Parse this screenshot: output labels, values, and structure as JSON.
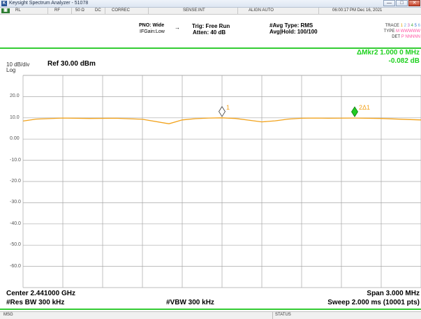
{
  "window": {
    "title": "Keysight Spectrum Analyzer - 51078",
    "minimize": "—",
    "maximize": "□",
    "close": "✕"
  },
  "menubar": {
    "rl": "RL",
    "rf": "RF",
    "impedance": "50 Ω",
    "coupling": "DC",
    "correc": "CORREC",
    "sense": "SENSE:INT",
    "align": "ALIGN AUTO",
    "datetime": "06:00:17 PM Dec 16, 2021"
  },
  "settings": {
    "pno": "PNO: Wide",
    "ifgain": "IFGain:Low",
    "trig": "Trig: Free Run",
    "atten": "Atten: 40 dB",
    "avg_type": "#Avg Type: RMS",
    "avg_hold": "Avg|Hold: 100/100"
  },
  "trace_table": {
    "trace_label": "TRACE",
    "trace_nums": [
      "1",
      "2",
      "3",
      "4",
      "5",
      "6"
    ],
    "type_label": "TYPE",
    "type_value": "M WWWWW",
    "det_label": "DET",
    "det_value": "P NNNNN"
  },
  "display": {
    "scale": "10 dB/div",
    "scale_type": "Log",
    "ref_level": "Ref 30.00 dBm",
    "marker_header": "ΔMkr2 1.000 0 MHz",
    "marker_value": "-0.082 dB"
  },
  "footer": {
    "center": "Center 2.441000 GHz",
    "res_bw": "#Res BW 300 kHz",
    "vbw": "#VBW 300 kHz",
    "span": "Span 3.000 MHz",
    "sweep": "Sweep  2.000 ms (10001 pts)"
  },
  "status": {
    "msg": "MSG",
    "status": "STATUS"
  },
  "colors": {
    "trace": "#f2a21a",
    "marker_active": "#22cc22",
    "marker_text": "#f2a21a",
    "grid": "#a8a8a8",
    "accent_green": "#33cc33"
  },
  "chart_data": {
    "type": "line",
    "x_unit": "GHz",
    "y_unit": "dBm",
    "center_ghz": 2.441,
    "span_mhz": 3.0,
    "xlim": [
      2.4395,
      2.4425
    ],
    "ylim": [
      -70,
      30
    ],
    "y_ticks": [
      "20.0",
      "10.0",
      "0.00",
      "-10.0",
      "-20.0",
      "-30.0",
      "-40.0",
      "-50.0",
      "-60.0"
    ],
    "y_tick_values": [
      20,
      10,
      0,
      -10,
      -20,
      -30,
      -40,
      -50,
      -60
    ],
    "series": [
      {
        "x": [
          2.4395,
          2.4396,
          2.4398,
          2.44,
          2.4402,
          2.4404,
          2.4406,
          2.4407,
          2.4408,
          2.4409,
          2.441,
          2.4411,
          2.4412,
          2.4413,
          2.4414,
          2.4415,
          2.4416,
          2.4417,
          2.4418,
          2.442,
          2.4422,
          2.4424,
          2.4425
        ],
        "y": [
          8.5,
          9.4,
          9.9,
          9.7,
          9.8,
          9.3,
          7.2,
          9.0,
          9.6,
          9.9,
          10.0,
          9.7,
          8.9,
          8.1,
          8.6,
          9.4,
          9.8,
          9.9,
          9.8,
          9.9,
          9.7,
          9.2,
          9.0
        ]
      }
    ],
    "markers": [
      {
        "label": "1",
        "x": 2.441,
        "y": 10.0,
        "active": false
      },
      {
        "label": "2Δ1",
        "x": 2.442,
        "y": 9.9,
        "active": true
      }
    ],
    "grid": true
  }
}
